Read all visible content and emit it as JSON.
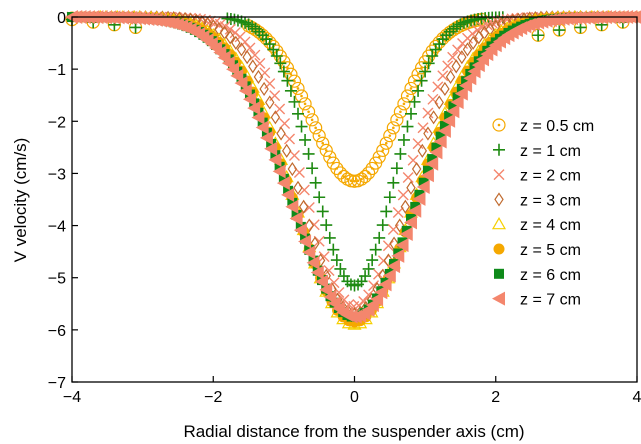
{
  "chart_data": {
    "type": "scatter",
    "title": "",
    "xlabel": "Radial distance from the suspender axis (cm)",
    "ylabel": "V velocity (cm/s)",
    "xlim": [
      -4,
      4
    ],
    "ylim": [
      -7,
      0
    ],
    "xticks": [
      -4,
      -2,
      0,
      2,
      4
    ],
    "yticks": [
      0,
      -1,
      -2,
      -3,
      -4,
      -5,
      -6,
      -7
    ],
    "xtick_labels": [
      "−4",
      "−2",
      "0",
      "2",
      "4"
    ],
    "ytick_labels": [
      "0",
      "−1",
      "−2",
      "−3",
      "−4",
      "−5",
      "−6",
      "−7"
    ],
    "grid": false,
    "legend_position": "right",
    "series": [
      {
        "name": "z = 0.5 cm",
        "marker": "circle-dot",
        "color": "#F5A800",
        "amp": 3.15,
        "sigma": 0.62,
        "x_start": -1.5,
        "x_end": 1.8,
        "step": 0.05,
        "tail": true
      },
      {
        "name": "z = 1 cm",
        "marker": "plus",
        "color": "#1E8A12",
        "amp": 5.15,
        "sigma": 0.56,
        "x_start": -1.8,
        "x_end": 2.1,
        "step": 0.05,
        "tail": true
      },
      {
        "name": "z = 2 cm",
        "marker": "x",
        "color": "#F4866D",
        "amp": 5.55,
        "sigma": 0.7,
        "x_start": -4.0,
        "x_end": 4.0,
        "step": 0.07,
        "tail": false
      },
      {
        "name": "z = 3 cm",
        "marker": "diamond-open",
        "color": "#C06A2E",
        "amp": 5.7,
        "sigma": 0.76,
        "x_start": -3.2,
        "x_end": 3.2,
        "step": 0.08,
        "tail": false
      },
      {
        "name": "z = 4 cm",
        "marker": "triangle-open",
        "color": "#F6D000",
        "amp": 5.9,
        "sigma": 0.84,
        "x_start": -3.6,
        "x_end": 3.6,
        "step": 0.08,
        "tail": false
      },
      {
        "name": "z = 5 cm",
        "marker": "circle-filled",
        "color": "#F5A800",
        "amp": 5.85,
        "sigma": 0.86,
        "x_start": -4.0,
        "x_end": 4.0,
        "step": 0.08,
        "tail": false
      },
      {
        "name": "z = 6 cm",
        "marker": "square-filled",
        "color": "#0E8A1A",
        "amp": 5.75,
        "sigma": 0.9,
        "x_start": -4.0,
        "x_end": 4.0,
        "step": 0.06,
        "tail": false
      },
      {
        "name": "z = 7 cm",
        "marker": "triangle-left-filled",
        "color": "#F4866D",
        "amp": 5.75,
        "sigma": 0.92,
        "x_start": -4.0,
        "x_end": 4.0,
        "step": 0.06,
        "tail": false
      }
    ]
  }
}
